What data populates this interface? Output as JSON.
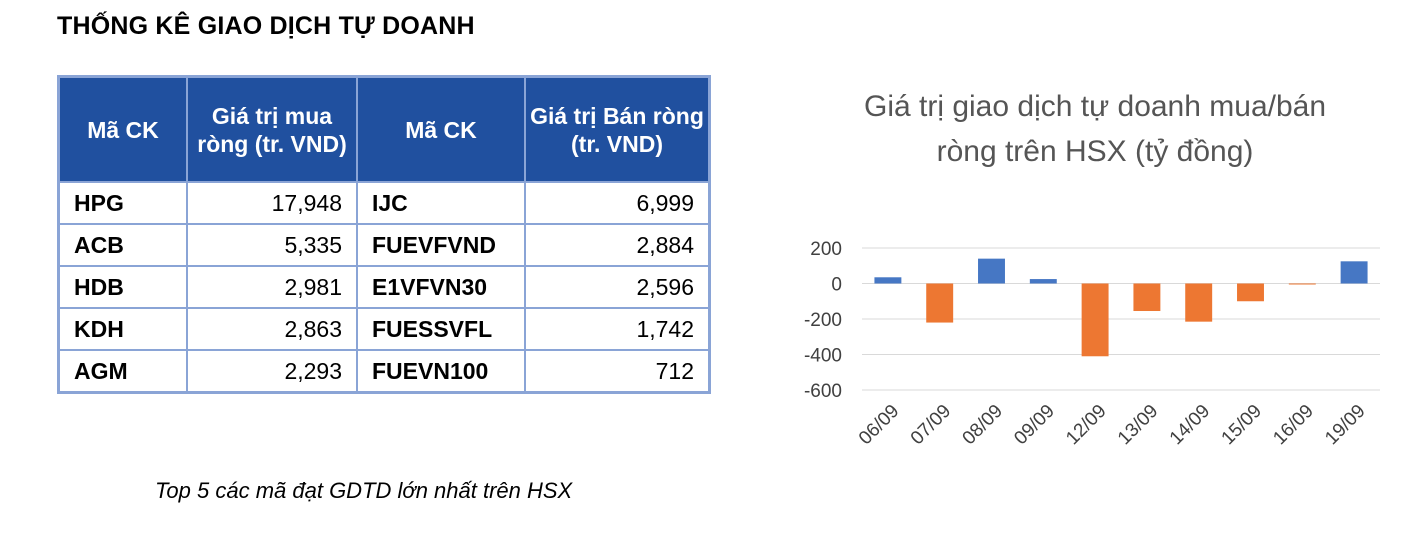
{
  "heading": "THỐNG KÊ GIAO DỊCH TỰ DOANH",
  "table": {
    "headers": [
      "Mã CK",
      "Giá trị mua ròng (tr. VND)",
      "Mã CK",
      "Giá trị Bán ròng (tr. VND)"
    ],
    "rows": [
      [
        "HPG",
        "17,948",
        "IJC",
        "6,999"
      ],
      [
        "ACB",
        "5,335",
        "FUEVFVND",
        "2,884"
      ],
      [
        "HDB",
        "2,981",
        "E1VFVN30",
        "2,596"
      ],
      [
        "KDH",
        "2,863",
        "FUESSVFL",
        "1,742"
      ],
      [
        "AGM",
        "2,293",
        "FUEVN100",
        "712"
      ]
    ],
    "border_color": "#8aa4d6",
    "header_color": "#20509f"
  },
  "caption": "Top 5 các mã đạt GDTD lớn nhất trên HSX",
  "chart_data": {
    "type": "bar",
    "title": "Giá trị giao dịch tự doanh mua/bán ròng trên HSX (tỷ đồng)",
    "categories": [
      "06/09",
      "07/09",
      "08/09",
      "09/09",
      "12/09",
      "13/09",
      "14/09",
      "15/09",
      "16/09",
      "19/09"
    ],
    "values": [
      35,
      -220,
      140,
      25,
      -410,
      -155,
      -215,
      -100,
      -5,
      125
    ],
    "yticks": [
      "200",
      "0",
      "-200",
      "-400",
      "-600"
    ],
    "ylim": [
      -600,
      200
    ],
    "grid": true,
    "positive_color": "#4677c4",
    "negative_color": "#ed7732"
  }
}
